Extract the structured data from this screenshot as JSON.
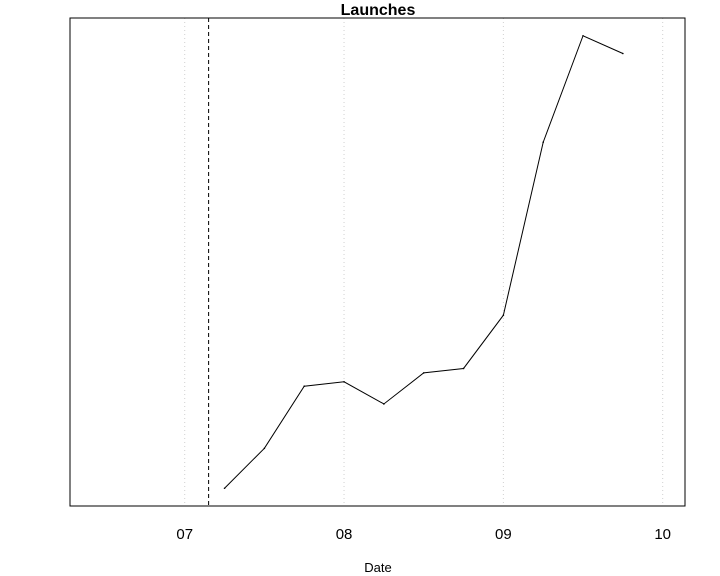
{
  "chart_data": {
    "type": "line",
    "title": "Launches",
    "xlabel": "Date",
    "ylabel": "",
    "x_ticks": [
      "07",
      "08",
      "09",
      "10"
    ],
    "x_tick_values": [
      2007,
      2008,
      2009,
      2010
    ],
    "xlim": [
      2006.28,
      2010.14
    ],
    "ylim": [
      0,
      1.1
    ],
    "y_axis_labels_shown": false,
    "grid": "vertical dotted at x ticks",
    "marker_line": {
      "x": 2007.15,
      "style": "dashed"
    },
    "series": [
      {
        "x": [
          2007.25,
          2007.5,
          2007.75,
          2008.0,
          2008.25,
          2008.5,
          2008.75,
          2009.0,
          2009.25,
          2009.5,
          2009.75
        ],
        "values": [
          0.04,
          0.13,
          0.27,
          0.28,
          0.23,
          0.3,
          0.31,
          0.43,
          0.82,
          1.06,
          1.02
        ]
      }
    ],
    "colors": {
      "line": "#000000",
      "grid": "#d0d0d0",
      "frame": "#000000"
    }
  }
}
